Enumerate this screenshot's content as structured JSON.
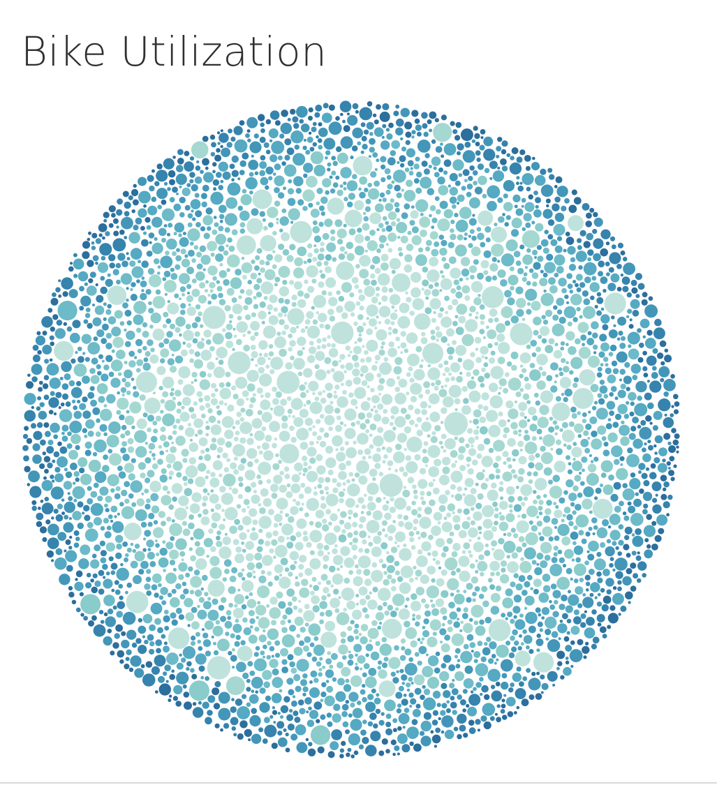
{
  "title": "Bike Utilization",
  "chart_data": {
    "type": "packed-bubble",
    "title": "Bike Utilization",
    "xlabel": "",
    "ylabel": "",
    "legend": "none",
    "grid": false,
    "mark_count_estimate": 8000,
    "color_scale": {
      "description": "sequential teal-blue; light teal in the center, dark blue toward the outer ring",
      "colors": [
        "#bfe3dc",
        "#a6d8d2",
        "#8acbcc",
        "#6dbac8",
        "#55a9c2",
        "#4396b8",
        "#3683ad",
        "#2c6e9c"
      ]
    },
    "size_range_note": "most circles small, a few large light-teal circles scattered throughout"
  }
}
